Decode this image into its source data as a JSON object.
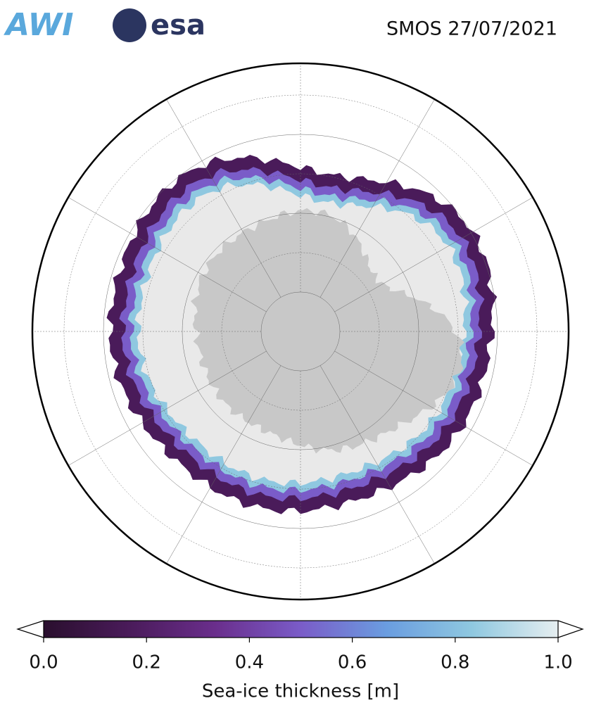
{
  "header": {
    "logos": [
      "AWI",
      "esa"
    ],
    "title": "SMOS 27/07/2021"
  },
  "colorbar": {
    "label": "Sea-ice thickness [m]",
    "range": [
      0,
      1
    ],
    "ticks": [
      {
        "value": 0,
        "label": "0.0"
      },
      {
        "value": 0.2,
        "label": "0.2"
      },
      {
        "value": 0.4,
        "label": "0.4"
      },
      {
        "value": 0.6,
        "label": "0.6"
      },
      {
        "value": 0.8,
        "label": "0.8"
      },
      {
        "value": 1,
        "label": "1.0"
      }
    ],
    "colors": [
      "#2a0f2e",
      "#4a1b5a",
      "#6a2e8c",
      "#7a5cc8",
      "#6a9de0",
      "#8fc8e0",
      "#e6eef0"
    ]
  }
}
